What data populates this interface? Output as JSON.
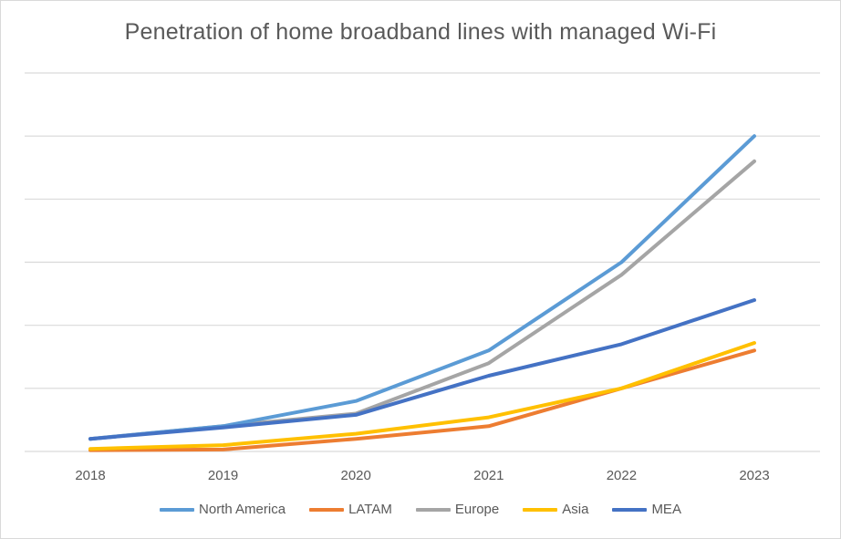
{
  "chart_data": {
    "type": "line",
    "title": "Penetration of home broadband lines with managed Wi-Fi",
    "xlabel": "",
    "ylabel": "",
    "categories": [
      "2018",
      "2019",
      "2020",
      "2021",
      "2022",
      "2023"
    ],
    "ylim": [
      0,
      60
    ],
    "gridlines": [
      0,
      10,
      20,
      30,
      40,
      50,
      60
    ],
    "grid": true,
    "legend_position": "bottom",
    "y_tick_labels_shown": false,
    "series": [
      {
        "name": "North America",
        "color": "#5b9bd5",
        "values": [
          2,
          4,
          8,
          16,
          30,
          50
        ]
      },
      {
        "name": "LATAM",
        "color": "#ed7d31",
        "values": [
          0.2,
          0.3,
          2,
          4,
          10,
          16
        ]
      },
      {
        "name": "Europe",
        "color": "#a5a5a5",
        "values": [
          2,
          4,
          6,
          14,
          28,
          46
        ]
      },
      {
        "name": "Asia",
        "color": "#ffc000",
        "values": [
          0.4,
          1,
          2.8,
          5.4,
          10,
          17.2
        ]
      },
      {
        "name": "MEA",
        "color": "#4472c4",
        "values": [
          2,
          3.8,
          5.8,
          12,
          17,
          24
        ]
      }
    ]
  }
}
